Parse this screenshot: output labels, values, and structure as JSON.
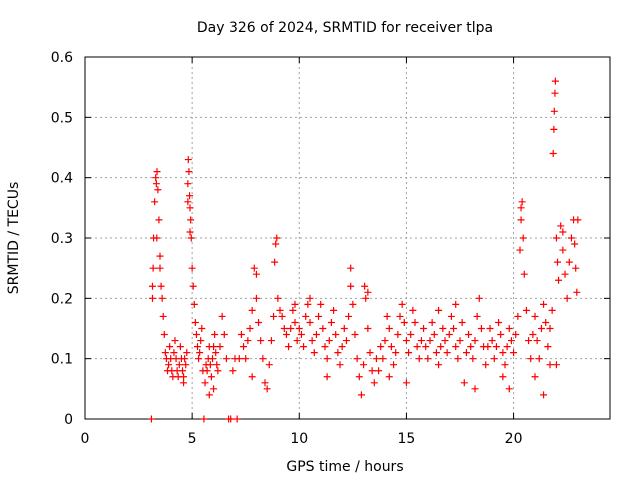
{
  "chart_data": {
    "type": "scatter",
    "title": "Day 326 of 2024, SRMTID for receiver tlpa",
    "xlabel": "GPS time / hours",
    "ylabel": "SRMTID / TECUs",
    "xlim": [
      0,
      24.5
    ],
    "ylim": [
      0,
      0.6
    ],
    "xticks": [
      0,
      5,
      10,
      15,
      20
    ],
    "xtick_labels": [
      "0",
      "5",
      "10",
      "15",
      "20"
    ],
    "yticks": [
      0,
      0.1,
      0.2,
      0.3,
      0.4,
      0.5,
      0.6
    ],
    "ytick_labels": [
      "0",
      "0.1",
      "0.2",
      "0.3",
      "0.4",
      "0.5",
      "0.6"
    ],
    "grid": true,
    "marker": "plus",
    "color": "#ff0000",
    "series": [
      {
        "name": "SRMTID",
        "points": [
          [
            3.1,
            0.0
          ],
          [
            3.15,
            0.22
          ],
          [
            3.18,
            0.25
          ],
          [
            3.2,
            0.3
          ],
          [
            3.25,
            0.36
          ],
          [
            3.3,
            0.4
          ],
          [
            3.33,
            0.39
          ],
          [
            3.36,
            0.41
          ],
          [
            3.4,
            0.38
          ],
          [
            3.45,
            0.33
          ],
          [
            3.5,
            0.27
          ],
          [
            3.55,
            0.22
          ],
          [
            3.6,
            0.2
          ],
          [
            3.65,
            0.17
          ],
          [
            3.7,
            0.14
          ],
          [
            3.75,
            0.11
          ],
          [
            3.8,
            0.1
          ],
          [
            3.85,
            0.08
          ],
          [
            3.9,
            0.09
          ],
          [
            3.95,
            0.12
          ],
          [
            4.0,
            0.1
          ],
          [
            4.05,
            0.08
          ],
          [
            4.1,
            0.07
          ],
          [
            4.15,
            0.11
          ],
          [
            4.2,
            0.13
          ],
          [
            4.25,
            0.1
          ],
          [
            4.3,
            0.08
          ],
          [
            4.35,
            0.07
          ],
          [
            4.4,
            0.09
          ],
          [
            4.45,
            0.12
          ],
          [
            4.5,
            0.1
          ],
          [
            4.55,
            0.08
          ],
          [
            4.6,
            0.07
          ],
          [
            4.65,
            0.1
          ],
          [
            4.7,
            0.09
          ],
          [
            4.75,
            0.11
          ],
          [
            4.8,
            0.39
          ],
          [
            4.82,
            0.43
          ],
          [
            4.85,
            0.41
          ],
          [
            4.88,
            0.37
          ],
          [
            4.9,
            0.35
          ],
          [
            4.93,
            0.33
          ],
          [
            4.96,
            0.3
          ],
          [
            5.0,
            0.25
          ],
          [
            5.05,
            0.22
          ],
          [
            5.1,
            0.19
          ],
          [
            5.15,
            0.16
          ],
          [
            5.2,
            0.14
          ],
          [
            5.25,
            0.12
          ],
          [
            5.3,
            0.1
          ],
          [
            5.35,
            0.11
          ],
          [
            5.4,
            0.13
          ],
          [
            5.45,
            0.15
          ],
          [
            5.5,
            0.08
          ],
          [
            5.55,
            0.0
          ],
          [
            5.6,
            0.06
          ],
          [
            5.65,
            0.09
          ],
          [
            5.7,
            0.08
          ],
          [
            5.75,
            0.1
          ],
          [
            5.8,
            0.12
          ],
          [
            5.85,
            0.09
          ],
          [
            5.9,
            0.07
          ],
          [
            5.95,
            0.1
          ],
          [
            6.0,
            0.12
          ],
          [
            6.05,
            0.14
          ],
          [
            6.1,
            0.11
          ],
          [
            6.15,
            0.09
          ],
          [
            6.2,
            0.08
          ],
          [
            6.3,
            0.12
          ],
          [
            6.4,
            0.17
          ],
          [
            6.5,
            0.14
          ],
          [
            6.6,
            0.1
          ],
          [
            6.7,
            0.0
          ],
          [
            6.8,
            0.0
          ],
          [
            6.9,
            0.08
          ],
          [
            7.0,
            0.1
          ],
          [
            7.1,
            0.0
          ],
          [
            7.2,
            0.1
          ],
          [
            7.3,
            0.14
          ],
          [
            7.4,
            0.12
          ],
          [
            7.5,
            0.1
          ],
          [
            7.6,
            0.13
          ],
          [
            7.7,
            0.15
          ],
          [
            7.8,
            0.18
          ],
          [
            7.9,
            0.25
          ],
          [
            8.0,
            0.2
          ],
          [
            8.1,
            0.16
          ],
          [
            8.2,
            0.13
          ],
          [
            8.3,
            0.1
          ],
          [
            8.4,
            0.06
          ],
          [
            8.5,
            0.05
          ],
          [
            8.6,
            0.09
          ],
          [
            8.7,
            0.13
          ],
          [
            8.8,
            0.17
          ],
          [
            8.85,
            0.26
          ],
          [
            8.9,
            0.29
          ],
          [
            8.95,
            0.3
          ],
          [
            9.0,
            0.2
          ],
          [
            9.1,
            0.18
          ],
          [
            9.2,
            0.17
          ],
          [
            9.3,
            0.15
          ],
          [
            9.4,
            0.14
          ],
          [
            9.5,
            0.12
          ],
          [
            9.6,
            0.15
          ],
          [
            9.7,
            0.18
          ],
          [
            9.8,
            0.16
          ],
          [
            9.9,
            0.13
          ],
          [
            10.0,
            0.15
          ],
          [
            10.1,
            0.14
          ],
          [
            10.2,
            0.12
          ],
          [
            10.3,
            0.17
          ],
          [
            10.4,
            0.19
          ],
          [
            10.5,
            0.16
          ],
          [
            10.6,
            0.13
          ],
          [
            10.7,
            0.11
          ],
          [
            10.8,
            0.14
          ],
          [
            10.9,
            0.17
          ],
          [
            11.0,
            0.19
          ],
          [
            11.1,
            0.15
          ],
          [
            11.2,
            0.12
          ],
          [
            11.3,
            0.1
          ],
          [
            11.4,
            0.13
          ],
          [
            11.5,
            0.16
          ],
          [
            11.6,
            0.18
          ],
          [
            11.7,
            0.14
          ],
          [
            11.8,
            0.11
          ],
          [
            11.9,
            0.09
          ],
          [
            12.0,
            0.12
          ],
          [
            12.1,
            0.15
          ],
          [
            12.2,
            0.13
          ],
          [
            12.3,
            0.17
          ],
          [
            12.4,
            0.22
          ],
          [
            12.5,
            0.19
          ],
          [
            12.6,
            0.14
          ],
          [
            12.7,
            0.1
          ],
          [
            12.8,
            0.07
          ],
          [
            12.9,
            0.04
          ],
          [
            13.0,
            0.09
          ],
          [
            13.05,
            0.22
          ],
          [
            13.1,
            0.2
          ],
          [
            13.2,
            0.15
          ],
          [
            13.3,
            0.11
          ],
          [
            13.4,
            0.08
          ],
          [
            13.5,
            0.06
          ],
          [
            13.6,
            0.1
          ],
          [
            13.7,
            0.08
          ],
          [
            13.8,
            0.12
          ],
          [
            13.9,
            0.1
          ],
          [
            14.0,
            0.13
          ],
          [
            14.1,
            0.17
          ],
          [
            14.2,
            0.15
          ],
          [
            14.3,
            0.12
          ],
          [
            14.4,
            0.09
          ],
          [
            14.5,
            0.11
          ],
          [
            14.6,
            0.14
          ],
          [
            14.7,
            0.17
          ],
          [
            14.8,
            0.19
          ],
          [
            14.9,
            0.16
          ],
          [
            15.0,
            0.13
          ],
          [
            15.1,
            0.11
          ],
          [
            15.2,
            0.14
          ],
          [
            15.3,
            0.18
          ],
          [
            15.4,
            0.16
          ],
          [
            15.5,
            0.12
          ],
          [
            15.6,
            0.1
          ],
          [
            15.7,
            0.13
          ],
          [
            15.8,
            0.15
          ],
          [
            15.9,
            0.12
          ],
          [
            16.0,
            0.1
          ],
          [
            16.1,
            0.13
          ],
          [
            16.2,
            0.16
          ],
          [
            16.3,
            0.14
          ],
          [
            16.4,
            0.11
          ],
          [
            16.5,
            0.09
          ],
          [
            16.6,
            0.12
          ],
          [
            16.7,
            0.15
          ],
          [
            16.8,
            0.13
          ],
          [
            16.9,
            0.11
          ],
          [
            17.0,
            0.14
          ],
          [
            17.1,
            0.17
          ],
          [
            17.2,
            0.15
          ],
          [
            17.3,
            0.12
          ],
          [
            17.4,
            0.1
          ],
          [
            17.5,
            0.13
          ],
          [
            17.6,
            0.16
          ],
          [
            17.7,
            0.06
          ],
          [
            17.8,
            0.11
          ],
          [
            17.9,
            0.14
          ],
          [
            18.0,
            0.12
          ],
          [
            18.1,
            0.1
          ],
          [
            18.2,
            0.13
          ],
          [
            18.3,
            0.17
          ],
          [
            18.4,
            0.2
          ],
          [
            18.5,
            0.15
          ],
          [
            18.6,
            0.12
          ],
          [
            18.7,
            0.09
          ],
          [
            18.8,
            0.12
          ],
          [
            18.9,
            0.15
          ],
          [
            19.0,
            0.13
          ],
          [
            19.1,
            0.1
          ],
          [
            19.2,
            0.12
          ],
          [
            19.3,
            0.16
          ],
          [
            19.4,
            0.14
          ],
          [
            19.5,
            0.11
          ],
          [
            19.6,
            0.09
          ],
          [
            19.7,
            0.12
          ],
          [
            19.8,
            0.15
          ],
          [
            19.9,
            0.13
          ],
          [
            20.0,
            0.11
          ],
          [
            20.1,
            0.14
          ],
          [
            20.2,
            0.17
          ],
          [
            20.3,
            0.28
          ],
          [
            20.35,
            0.33
          ],
          [
            20.4,
            0.36
          ],
          [
            20.45,
            0.3
          ],
          [
            20.5,
            0.24
          ],
          [
            20.6,
            0.18
          ],
          [
            20.7,
            0.13
          ],
          [
            20.8,
            0.1
          ],
          [
            20.9,
            0.14
          ],
          [
            21.0,
            0.17
          ],
          [
            21.1,
            0.13
          ],
          [
            21.2,
            0.1
          ],
          [
            21.3,
            0.15
          ],
          [
            21.4,
            0.19
          ],
          [
            21.5,
            0.16
          ],
          [
            21.6,
            0.12
          ],
          [
            21.7,
            0.09
          ],
          [
            21.8,
            0.18
          ],
          [
            21.85,
            0.44
          ],
          [
            21.88,
            0.48
          ],
          [
            21.9,
            0.51
          ],
          [
            21.93,
            0.54
          ],
          [
            21.95,
            0.56
          ],
          [
            22.0,
            0.3
          ],
          [
            22.05,
            0.26
          ],
          [
            22.1,
            0.23
          ],
          [
            22.2,
            0.32
          ],
          [
            22.3,
            0.28
          ],
          [
            22.4,
            0.24
          ],
          [
            22.5,
            0.2
          ],
          [
            22.6,
            0.26
          ],
          [
            22.7,
            0.3
          ],
          [
            22.8,
            0.33
          ],
          [
            22.85,
            0.29
          ],
          [
            22.9,
            0.25
          ],
          [
            22.95,
            0.21
          ],
          [
            23.0,
            0.33
          ],
          [
            3.35,
            0.3
          ],
          [
            3.5,
            0.25
          ],
          [
            4.8,
            0.36
          ],
          [
            4.9,
            0.31
          ],
          [
            8.0,
            0.24
          ],
          [
            20.35,
            0.35
          ],
          [
            21.7,
            0.15
          ],
          [
            22.3,
            0.31
          ],
          [
            6.0,
            0.05
          ],
          [
            7.8,
            0.07
          ],
          [
            9.8,
            0.19
          ],
          [
            10.5,
            0.2
          ],
          [
            12.4,
            0.25
          ],
          [
            13.2,
            0.21
          ],
          [
            14.2,
            0.07
          ],
          [
            16.5,
            0.18
          ],
          [
            18.2,
            0.05
          ],
          [
            19.5,
            0.07
          ],
          [
            21.0,
            0.07
          ],
          [
            22.0,
            0.09
          ],
          [
            3.15,
            0.2
          ],
          [
            4.6,
            0.06
          ],
          [
            5.8,
            0.04
          ],
          [
            11.3,
            0.07
          ],
          [
            15.0,
            0.06
          ],
          [
            17.3,
            0.19
          ],
          [
            19.8,
            0.05
          ],
          [
            21.4,
            0.04
          ]
        ]
      }
    ]
  }
}
